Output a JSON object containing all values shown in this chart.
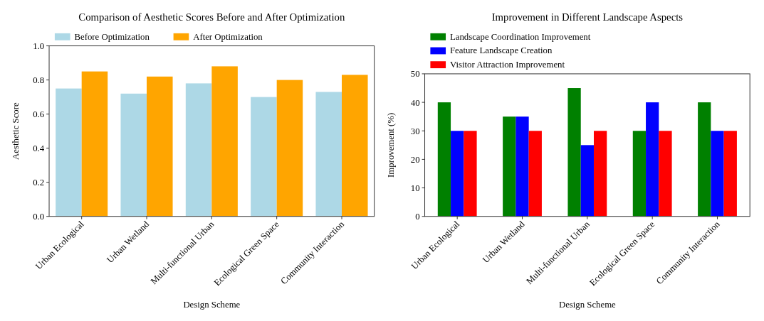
{
  "chart_data": [
    {
      "type": "bar",
      "title": "Comparison of Aesthetic Scores Before and After Optimization",
      "xlabel": "Design Scheme",
      "ylabel": "Aesthetic Score",
      "categories": [
        "Urban Ecological",
        "Urban Wetland",
        "Multi-functional Urban",
        "Ecological Green Space",
        "Community Interaction"
      ],
      "series": [
        {
          "name": "Before Optimization",
          "color": "#add8e6",
          "values": [
            0.75,
            0.72,
            0.78,
            0.7,
            0.73
          ]
        },
        {
          "name": "After Optimization",
          "color": "#ffa500",
          "values": [
            0.85,
            0.82,
            0.88,
            0.8,
            0.83
          ]
        }
      ],
      "ylim": [
        0,
        1
      ],
      "yticks": [
        {
          "value": 0,
          "label": "0.0"
        },
        0.2,
        0.4,
        0.6,
        0.8,
        {
          "value": 1,
          "label": "1.0"
        }
      ],
      "legend": "top"
    },
    {
      "type": "bar",
      "title": "Improvement in Different Landscape Aspects",
      "xlabel": "Design Scheme",
      "ylabel": "Improvement (%)",
      "categories": [
        "Urban Ecological",
        "Urban Wetland",
        "Multi-functional Urban",
        "Ecological Green Space",
        "Community Interaction"
      ],
      "series": [
        {
          "name": "Landscape Coordination Improvement",
          "color": "#008000",
          "values": [
            40,
            35,
            45,
            30,
            40
          ]
        },
        {
          "name": "Feature Landscape Creation",
          "color": "#0000ff",
          "values": [
            30,
            35,
            25,
            40,
            30
          ]
        },
        {
          "name": "Visitor Attraction Improvement",
          "color": "#ff0000",
          "values": [
            30,
            30,
            30,
            30,
            30
          ]
        }
      ],
      "ylim": [
        0,
        50
      ],
      "yticks": [
        0,
        10,
        20,
        30,
        40,
        50
      ],
      "legend": "top"
    }
  ]
}
